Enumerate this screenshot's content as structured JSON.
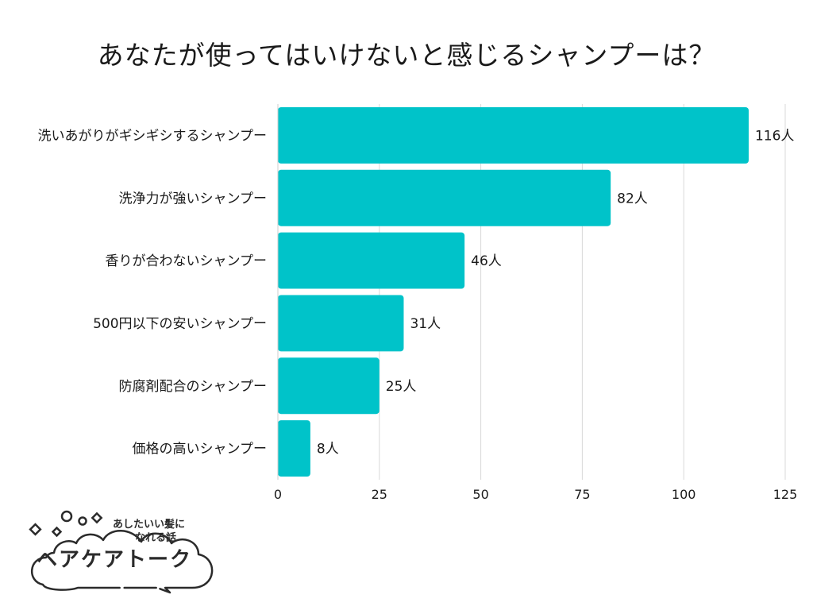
{
  "chart_data": {
    "type": "bar",
    "orientation": "horizontal",
    "title": "あなたが使ってはいけないと感じるシャンプーは？",
    "categories": [
      "洗いあがりがギシギシするシャンプー",
      "洗浄力が強いシャンプー",
      "香りが合わないシャンプー",
      "500円以下の安いシャンプー",
      "防腐剤配合のシャンプー",
      "価格の高いシャンプー"
    ],
    "values": [
      116,
      82,
      46,
      31,
      25,
      8
    ],
    "value_labels": [
      "116人",
      "82人",
      "46人",
      "31人",
      "25人",
      "8人"
    ],
    "xlim": [
      0,
      125
    ],
    "xticks": [
      0,
      25,
      50,
      75,
      100,
      125
    ],
    "xtick_labels": [
      "0",
      "25",
      "50",
      "75",
      "100",
      "125"
    ],
    "grid": true,
    "bar_color": "#00c3c9",
    "grid_color": "#d9d9d9",
    "xlabel": "",
    "ylabel": ""
  },
  "logo": {
    "tagline_line1": "あしたいい髪に",
    "tagline_line2": "なれる話",
    "wordmark": "ヘアケアトーク",
    "color": "#2b2b2b"
  }
}
